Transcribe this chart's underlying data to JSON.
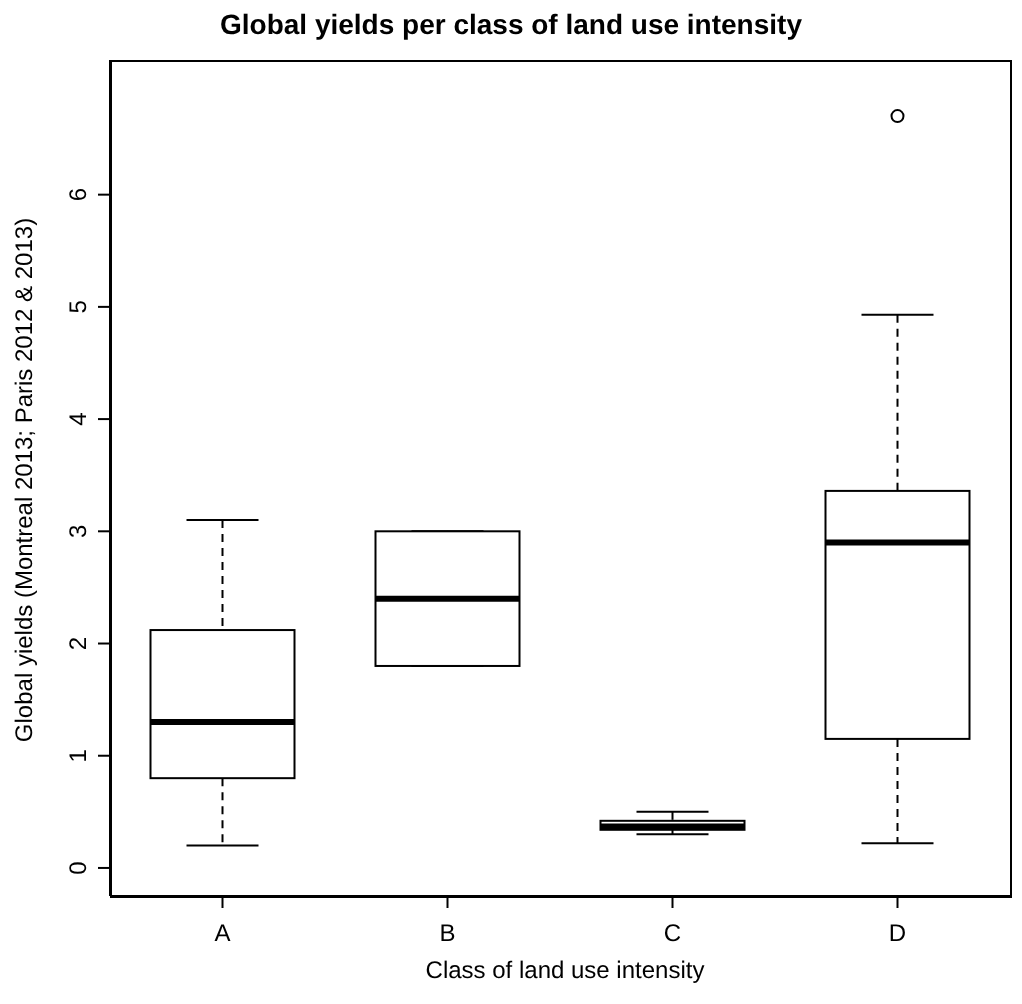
{
  "chart_data": {
    "type": "box",
    "title": "Global yields per class of land use intensity",
    "xlabel": "Class of land use intensity",
    "ylabel": "Global yields (Montreal 2013; Paris 2012 & 2013)",
    "categories": [
      "A",
      "B",
      "C",
      "D"
    ],
    "boxes": [
      {
        "low": 0.2,
        "q1": 0.8,
        "median": 1.3,
        "q3": 2.12,
        "high": 3.1
      },
      {
        "low": 1.8,
        "q1": 1.8,
        "median": 2.4,
        "q3": 3.0,
        "high": 3.0
      },
      {
        "low": 0.3,
        "q1": 0.34,
        "median": 0.37,
        "q3": 0.42,
        "high": 0.5
      },
      {
        "low": 0.22,
        "q1": 1.15,
        "median": 2.9,
        "q3": 3.36,
        "high": 4.93,
        "outliers": [
          6.7
        ]
      }
    ],
    "ylim": [
      -0.25,
      7.2
    ],
    "yticks": [
      0,
      1,
      2,
      3,
      4,
      5,
      6
    ],
    "grid": false
  }
}
